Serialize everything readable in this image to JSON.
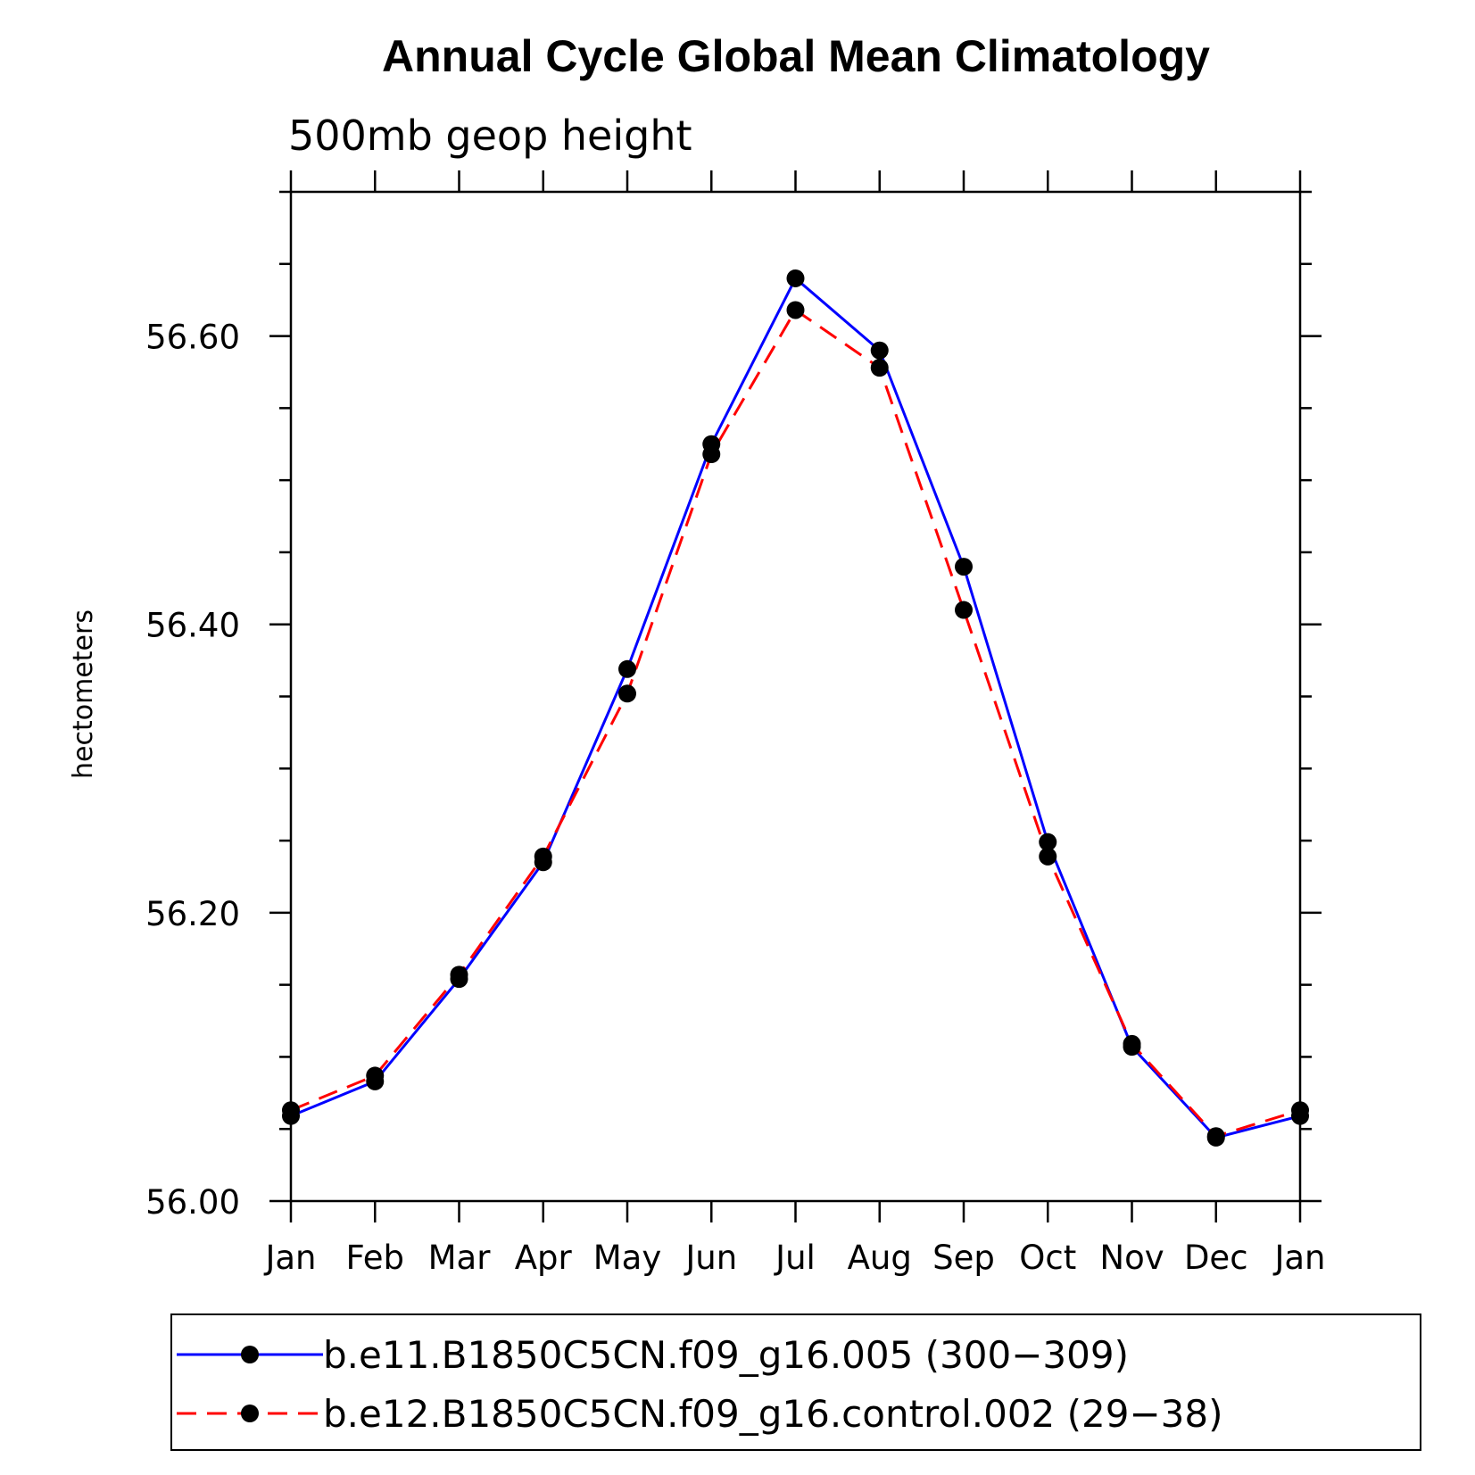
{
  "chart_data": {
    "type": "line",
    "title": "Annual Cycle Global Mean Climatology",
    "subtitle": "500mb geop height",
    "xlabel": "",
    "ylabel": "hectometers",
    "categories": [
      "Jan",
      "Feb",
      "Mar",
      "Apr",
      "May",
      "Jun",
      "Jul",
      "Aug",
      "Sep",
      "Oct",
      "Nov",
      "Dec",
      "Jan"
    ],
    "ylim": [
      56.0,
      56.7
    ],
    "yticks": [
      56.0,
      56.2,
      56.4,
      56.6
    ],
    "ytick_labels": [
      "56.00",
      "56.20",
      "56.40",
      "56.60"
    ],
    "y_minor_step": 0.05,
    "grid": false,
    "legend_position": "bottom",
    "series": [
      {
        "name": "b.e11.B1850C5CN.f09_g16.005 (300−309)",
        "color": "#0000ff",
        "dash": "solid",
        "marker": "filled-circle",
        "values": [
          56.059,
          56.083,
          56.154,
          56.235,
          56.369,
          56.525,
          56.64,
          56.59,
          56.44,
          56.249,
          56.107,
          56.044,
          56.059
        ]
      },
      {
        "name": "b.e12.B1850C5CN.f09_g16.control.002 (29−38)",
        "color": "#ff0000",
        "dash": "dashed",
        "marker": "filled-circle",
        "values": [
          56.063,
          56.087,
          56.157,
          56.239,
          56.352,
          56.518,
          56.618,
          56.578,
          56.41,
          56.239,
          56.109,
          56.045,
          56.063
        ]
      }
    ]
  }
}
